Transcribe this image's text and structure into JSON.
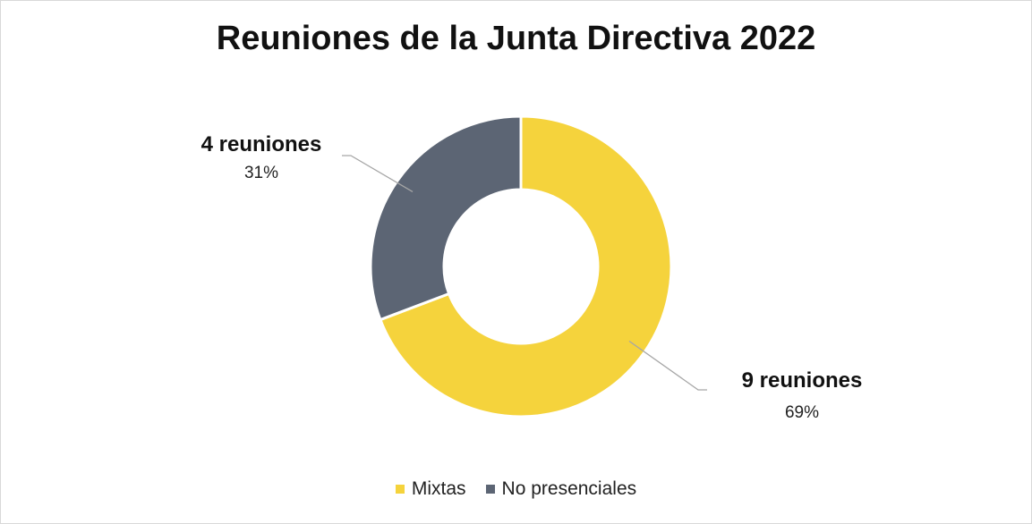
{
  "chart_data": {
    "type": "pie",
    "variant": "doughnut",
    "title": "Reuniones de la Junta Directiva 2022",
    "legend_position": "bottom",
    "slices": [
      {
        "name": "Mixtas",
        "value": 9,
        "label": "9 reuniones",
        "percent_label": "69%",
        "color": "#F5D33C"
      },
      {
        "name": "No presenciales",
        "value": 4,
        "label": "4 reuniones",
        "percent_label": "31%",
        "color": "#5C6574"
      }
    ]
  }
}
